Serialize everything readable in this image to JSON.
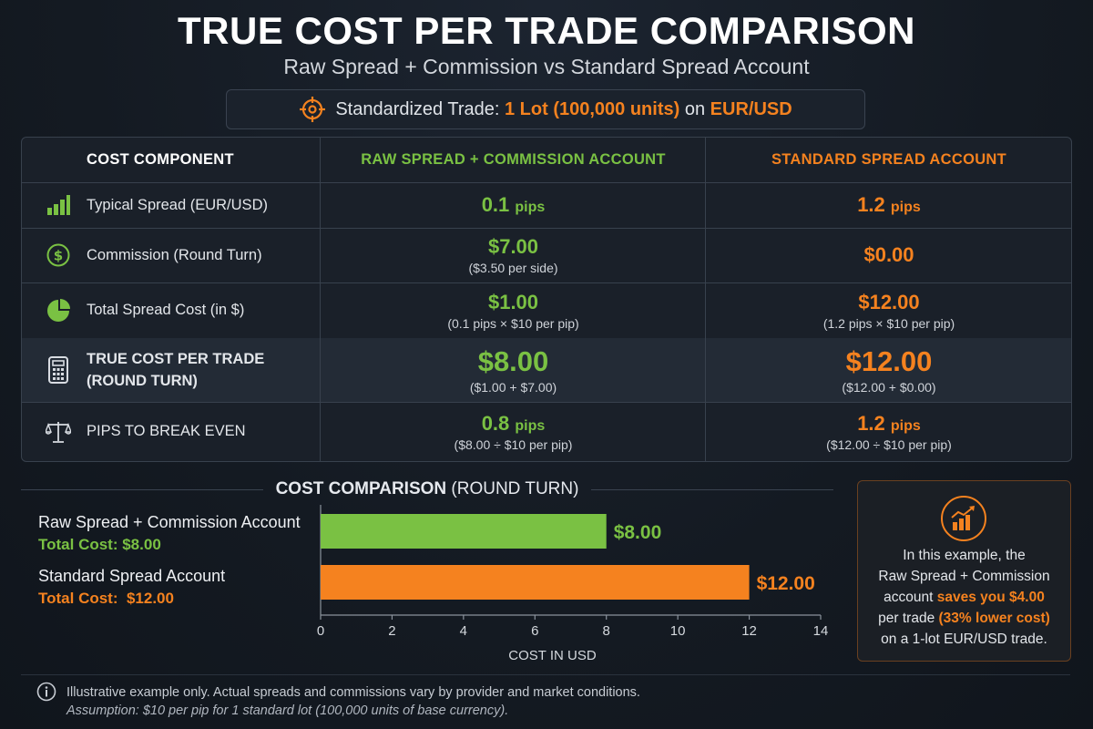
{
  "title": "TRUE COST PER TRADE COMPARISON",
  "subtitle": "Raw Spread + Commission vs Standard Spread Account",
  "trade": {
    "prefix": "Standardized Trade:",
    "lot": "1 Lot (100,000 units)",
    "on": "on",
    "pair": "EUR/USD",
    "icon": "target-icon"
  },
  "table": {
    "headers": [
      "COST COMPONENT",
      "RAW SPREAD + COMMISSION ACCOUNT",
      "STANDARD SPREAD ACCOUNT"
    ],
    "rows": [
      {
        "icon": "bar-chart-icon",
        "label": "Typical Spread (EUR/USD)",
        "raw": "0.1",
        "raw_unit": "pips",
        "raw_sub": "",
        "std": "1.2",
        "std_unit": "pips",
        "std_sub": ""
      },
      {
        "icon": "dollar-circle-icon",
        "label": "Commission (Round Turn)",
        "raw": "$7.00",
        "raw_unit": "",
        "raw_sub": "($3.50 per side)",
        "std": "$0.00",
        "std_unit": "",
        "std_sub": ""
      },
      {
        "icon": "pie-chart-icon",
        "label": "Total Spread Cost (in $)",
        "raw": "$1.00",
        "raw_unit": "",
        "raw_sub": "(0.1 pips × $10 per pip)",
        "std": "$12.00",
        "std_unit": "",
        "std_sub": "(1.2 pips × $10 per pip)"
      },
      {
        "icon": "calculator-icon",
        "label_line1": "TRUE COST PER TRADE",
        "label_line2": "(ROUND TURN)",
        "raw": "$8.00",
        "raw_unit": "",
        "raw_sub": "($1.00 + $7.00)",
        "std": "$12.00",
        "std_unit": "",
        "std_sub": "($12.00 + $0.00)"
      },
      {
        "icon": "balance-scale-icon",
        "label": "PIPS TO BREAK EVEN",
        "raw": "0.8",
        "raw_unit": "pips",
        "raw_sub": "($8.00 ÷ $10 per pip)",
        "std": "1.2",
        "std_unit": "pips",
        "std_sub": "($12.00 ÷ $10 per pip)"
      }
    ]
  },
  "comparison": {
    "title_bold": "COST COMPARISON",
    "title_rest": "(ROUND TURN)",
    "legend": [
      {
        "name": "Raw Spread + Commission Account",
        "total": "Total Cost: $8.00"
      },
      {
        "name": "Standard Spread Account",
        "total": "Total Cost:  $12.00"
      }
    ]
  },
  "chart_data": {
    "type": "bar",
    "orientation": "horizontal",
    "categories": [
      "Raw Spread + Commission Account",
      "Standard Spread Account"
    ],
    "values": [
      8.0,
      12.0
    ],
    "value_labels": [
      "$8.00",
      "$12.00"
    ],
    "colors": [
      "#7ac143",
      "#f5821f"
    ],
    "xlabel": "COST IN USD",
    "xlim": [
      0,
      14
    ],
    "xticks": [
      0,
      2,
      4,
      6,
      8,
      10,
      12,
      14
    ],
    "grid": false
  },
  "savings": {
    "icon": "growth-chart-icon",
    "line1": "In this example, the",
    "line2": "Raw Spread + Commission",
    "line3_a": "account ",
    "line3_b": "saves you $4.00",
    "line4_a": "per trade ",
    "line4_b": "(33% lower cost)",
    "line5": "on a 1-lot EUR/USD trade."
  },
  "footer": {
    "line1": "Illustrative example only. Actual spreads and commissions vary by provider and market conditions.",
    "line2": "Assumption: $10 per pip for 1 standard lot (100,000 units of base currency)."
  },
  "colors": {
    "raw": "#7ac143",
    "standard": "#f5821f",
    "background": "#141a22"
  }
}
